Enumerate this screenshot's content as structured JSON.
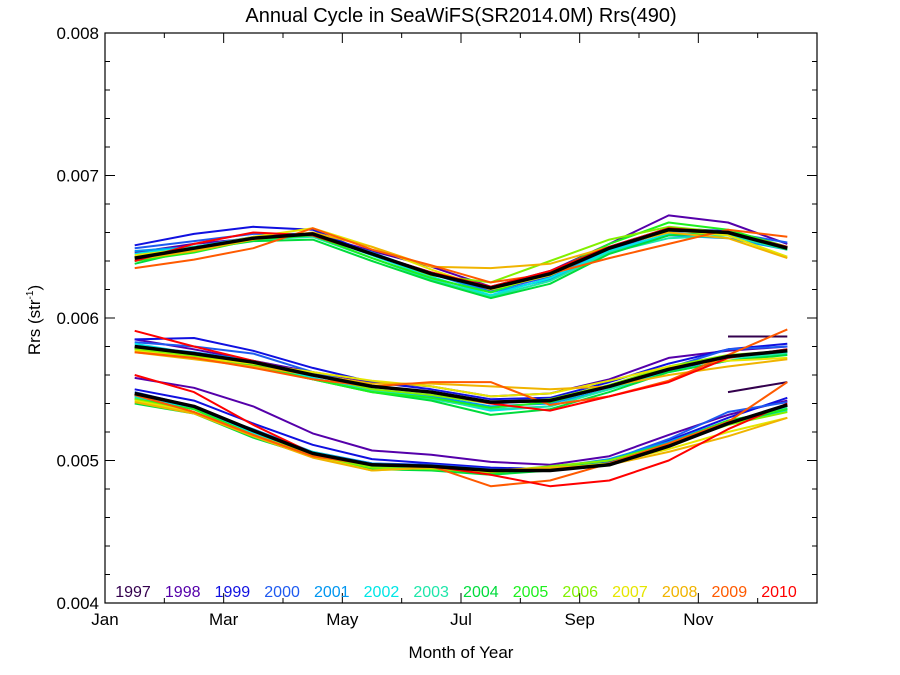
{
  "chart_data": {
    "type": "line",
    "title": "Annual Cycle in SeaWiFS(SR2014.0M) Rrs(490)",
    "xlabel": "Month of Year",
    "ylabel_main": "Rrs (str",
    "ylabel_sup": "-1",
    "ylabel_close": ")",
    "xlim": [
      0,
      12
    ],
    "ylim": [
      0.004,
      0.008
    ],
    "y_ticks": [
      0.004,
      0.005,
      0.006,
      0.007,
      0.008
    ],
    "y_tick_labels": [
      "0.004",
      "0.005",
      "0.006",
      "0.007",
      "0.008"
    ],
    "x_ticks": [
      0,
      2,
      4,
      6,
      8,
      10
    ],
    "x_tick_labels": [
      "Jan",
      "Mar",
      "May",
      "Jul",
      "Sep",
      "Nov"
    ],
    "x": [
      0.5,
      1.5,
      2.5,
      3.5,
      4.5,
      5.5,
      6.5,
      7.5,
      8.5,
      9.5,
      10.5,
      11.5
    ],
    "legend_position": "bottom, inside plot",
    "series": [
      {
        "name": "1997",
        "color": "#33004d",
        "upper": [
          null,
          null,
          null,
          null,
          null,
          null,
          null,
          null,
          null,
          null,
          null,
          null
        ],
        "middle": [
          null,
          null,
          null,
          null,
          null,
          null,
          null,
          null,
          null,
          null,
          0.00587,
          0.00587
        ],
        "lower": [
          null,
          null,
          null,
          null,
          null,
          null,
          null,
          null,
          null,
          null,
          0.00548,
          0.00555
        ]
      },
      {
        "name": "1998",
        "color": "#5500aa",
        "upper": [
          0.00646,
          0.00652,
          0.00656,
          0.00659,
          0.00647,
          0.00636,
          0.00622,
          0.00633,
          0.00652,
          0.00672,
          0.00667,
          0.00652
        ],
        "middle": [
          0.00585,
          0.00578,
          0.0057,
          0.00562,
          0.00555,
          0.00552,
          0.00545,
          0.00547,
          0.00557,
          0.00572,
          0.00577,
          0.0058
        ],
        "lower": [
          0.00558,
          0.00551,
          0.00538,
          0.00519,
          0.00507,
          0.00504,
          0.00499,
          0.00497,
          0.00503,
          0.00518,
          0.00532,
          0.00542
        ]
      },
      {
        "name": "1999",
        "color": "#1010e0",
        "upper": [
          0.00651,
          0.00659,
          0.00664,
          0.00662,
          0.00645,
          0.00632,
          0.0062,
          0.00632,
          0.0065,
          0.00663,
          0.00661,
          0.00649
        ],
        "middle": [
          0.00585,
          0.00586,
          0.00577,
          0.00565,
          0.00555,
          0.0055,
          0.00543,
          0.00544,
          0.00555,
          0.00568,
          0.00578,
          0.00582
        ],
        "lower": [
          0.0055,
          0.00542,
          0.00526,
          0.00511,
          0.00501,
          0.00498,
          0.00495,
          0.00494,
          0.00499,
          0.00514,
          0.0053,
          0.00544
        ]
      },
      {
        "name": "2000",
        "color": "#1e5af0",
        "upper": [
          0.00649,
          0.00654,
          0.00659,
          0.00659,
          0.00645,
          0.00632,
          0.00619,
          0.00629,
          0.00648,
          0.00661,
          0.0066,
          0.00653
        ],
        "middle": [
          0.00583,
          0.0058,
          0.00575,
          0.00562,
          0.00552,
          0.00548,
          0.0054,
          0.00542,
          0.00552,
          0.00565,
          0.00578,
          0.0058
        ],
        "lower": [
          0.00548,
          0.00538,
          0.0052,
          0.00505,
          0.00498,
          0.00497,
          0.00494,
          0.00493,
          0.005,
          0.00515,
          0.00534,
          0.00541
        ]
      },
      {
        "name": "2001",
        "color": "#0096f0",
        "upper": [
          0.00647,
          0.0065,
          0.00657,
          0.00658,
          0.00646,
          0.00631,
          0.00618,
          0.00627,
          0.00647,
          0.00658,
          0.00656,
          0.00648
        ],
        "middle": [
          0.0058,
          0.00576,
          0.0057,
          0.0056,
          0.0055,
          0.00545,
          0.00538,
          0.0054,
          0.0055,
          0.00563,
          0.00572,
          0.00578
        ],
        "lower": [
          0.00545,
          0.00536,
          0.00522,
          0.00506,
          0.00498,
          0.00496,
          0.00493,
          0.00495,
          0.00501,
          0.00513,
          0.00528,
          0.00536
        ]
      },
      {
        "name": "2002",
        "color": "#00e6e6",
        "upper": [
          0.00645,
          0.0065,
          0.00656,
          0.00659,
          0.00644,
          0.00629,
          0.00616,
          0.00628,
          0.00647,
          0.00659,
          0.00659,
          0.00648
        ],
        "middle": [
          0.00582,
          0.00575,
          0.00568,
          0.00558,
          0.00549,
          0.00544,
          0.00535,
          0.00538,
          0.0055,
          0.00562,
          0.0057,
          0.00576
        ],
        "lower": [
          0.00545,
          0.00536,
          0.00519,
          0.00506,
          0.00497,
          0.00495,
          0.00493,
          0.00494,
          0.00498,
          0.0051,
          0.00526,
          0.00535
        ]
      },
      {
        "name": "2003",
        "color": "#1ee6aa",
        "upper": [
          0.00643,
          0.0065,
          0.00655,
          0.00657,
          0.00642,
          0.00627,
          0.00615,
          0.00626,
          0.00646,
          0.00656,
          0.00658,
          0.00648
        ],
        "middle": [
          0.0058,
          0.00574,
          0.00566,
          0.00557,
          0.00549,
          0.00543,
          0.00536,
          0.00538,
          0.0055,
          0.00564,
          0.00572,
          0.00575
        ],
        "lower": [
          0.00544,
          0.00534,
          0.00517,
          0.00504,
          0.00496,
          0.00494,
          0.00492,
          0.00494,
          0.00498,
          0.00511,
          0.00527,
          0.00537
        ]
      },
      {
        "name": "2004",
        "color": "#00dc3c",
        "upper": [
          0.00638,
          0.00648,
          0.00654,
          0.00655,
          0.0064,
          0.00626,
          0.00614,
          0.00624,
          0.00645,
          0.00658,
          0.0066,
          0.00648
        ],
        "middle": [
          0.00578,
          0.00572,
          0.00566,
          0.00557,
          0.00548,
          0.00542,
          0.00532,
          0.00536,
          0.00548,
          0.00562,
          0.0057,
          0.00574
        ],
        "lower": [
          0.0054,
          0.00533,
          0.00516,
          0.00503,
          0.00494,
          0.00493,
          0.0049,
          0.00493,
          0.00498,
          0.0051,
          0.00526,
          0.00536
        ]
      },
      {
        "name": "2005",
        "color": "#1ef01e",
        "upper": [
          0.0064,
          0.00646,
          0.00655,
          0.00658,
          0.00642,
          0.00628,
          0.00618,
          0.00632,
          0.00652,
          0.00667,
          0.00662,
          0.0065
        ],
        "middle": [
          0.00579,
          0.00574,
          0.00567,
          0.00557,
          0.00548,
          0.00544,
          0.00537,
          0.00541,
          0.00552,
          0.00566,
          0.00573,
          0.00577
        ],
        "lower": [
          0.00543,
          0.00536,
          0.00518,
          0.00503,
          0.00495,
          0.00494,
          0.00491,
          0.00495,
          0.005,
          0.00512,
          0.00528,
          0.00536
        ]
      },
      {
        "name": "2006",
        "color": "#82f000",
        "upper": [
          0.00642,
          0.00648,
          0.00656,
          0.00659,
          0.00645,
          0.0063,
          0.00625,
          0.0064,
          0.00655,
          0.00664,
          0.0066,
          0.00649
        ],
        "middle": [
          0.00578,
          0.00573,
          0.00568,
          0.0056,
          0.0055,
          0.00546,
          0.0054,
          0.00543,
          0.00553,
          0.00566,
          0.00574,
          0.00577
        ],
        "lower": [
          0.00543,
          0.00534,
          0.00518,
          0.00504,
          0.00495,
          0.00494,
          0.00492,
          0.00496,
          0.005,
          0.00511,
          0.00525,
          0.00534
        ]
      },
      {
        "name": "2007",
        "color": "#e6e600",
        "upper": [
          0.00644,
          0.00649,
          0.00657,
          0.00663,
          0.0065,
          0.00634,
          0.0062,
          0.0063,
          0.00649,
          0.00662,
          0.00658,
          0.00643
        ],
        "middle": [
          0.00577,
          0.00572,
          0.00568,
          0.00562,
          0.00556,
          0.00552,
          0.00545,
          0.00547,
          0.00556,
          0.00566,
          0.0057,
          0.00572
        ],
        "lower": [
          0.00542,
          0.00534,
          0.00518,
          0.00503,
          0.00493,
          0.00495,
          0.00492,
          0.00494,
          0.00498,
          0.00508,
          0.0052,
          0.0053
        ]
      },
      {
        "name": "2008",
        "color": "#f0b400",
        "upper": [
          0.00641,
          0.00647,
          0.00655,
          0.0066,
          0.0065,
          0.00636,
          0.00635,
          0.00638,
          0.0065,
          0.0066,
          0.00656,
          0.00642
        ],
        "middle": [
          0.00576,
          0.00571,
          0.00566,
          0.0056,
          0.00554,
          0.00554,
          0.00552,
          0.0055,
          0.00552,
          0.0056,
          0.00566,
          0.00571
        ],
        "lower": [
          0.00541,
          0.00533,
          0.00517,
          0.00502,
          0.00493,
          0.00495,
          0.00493,
          0.00495,
          0.00497,
          0.00506,
          0.00517,
          0.0053
        ]
      },
      {
        "name": "2009",
        "color": "#ff5a00",
        "upper": [
          0.00635,
          0.00641,
          0.00649,
          0.00663,
          0.00648,
          0.00637,
          0.00625,
          0.00631,
          0.00642,
          0.00652,
          0.00662,
          0.00657
        ],
        "middle": [
          0.00576,
          0.00572,
          0.00565,
          0.00557,
          0.00552,
          0.00555,
          0.00555,
          0.00539,
          0.00545,
          0.00556,
          0.00574,
          0.00592
        ],
        "lower": [
          0.00546,
          0.00534,
          0.00518,
          0.00503,
          0.00497,
          0.00496,
          0.00482,
          0.00486,
          0.00498,
          0.00512,
          0.00527,
          0.00555
        ]
      },
      {
        "name": "2010",
        "color": "#ff0000",
        "upper": [
          0.0064,
          0.00652,
          0.0066,
          0.00658,
          0.00645,
          0.00632,
          0.00622,
          0.00633,
          0.0065,
          0.00663,
          0.0066,
          0.0065
        ],
        "middle": [
          0.00591,
          0.0058,
          0.0057,
          0.0056,
          0.00552,
          0.00548,
          0.0054,
          0.00535,
          0.00545,
          0.00555,
          0.00572,
          0.00578
        ],
        "lower": [
          0.0056,
          0.00548,
          0.00525,
          0.00505,
          0.00497,
          0.00496,
          0.0049,
          0.00482,
          0.00486,
          0.005,
          0.00522,
          0.0054
        ]
      }
    ],
    "mean": {
      "color": "#000000",
      "upper": [
        0.00642,
        0.00649,
        0.00656,
        0.00659,
        0.00645,
        0.00631,
        0.00621,
        0.00631,
        0.00649,
        0.00662,
        0.0066,
        0.00649
      ],
      "middle": [
        0.0058,
        0.00575,
        0.00569,
        0.0056,
        0.00552,
        0.00548,
        0.00541,
        0.00542,
        0.00552,
        0.00564,
        0.00573,
        0.00577
      ],
      "lower": [
        0.00547,
        0.00538,
        0.00521,
        0.00505,
        0.00497,
        0.00496,
        0.00493,
        0.00493,
        0.00497,
        0.0051,
        0.00526,
        0.00539
      ]
    }
  }
}
